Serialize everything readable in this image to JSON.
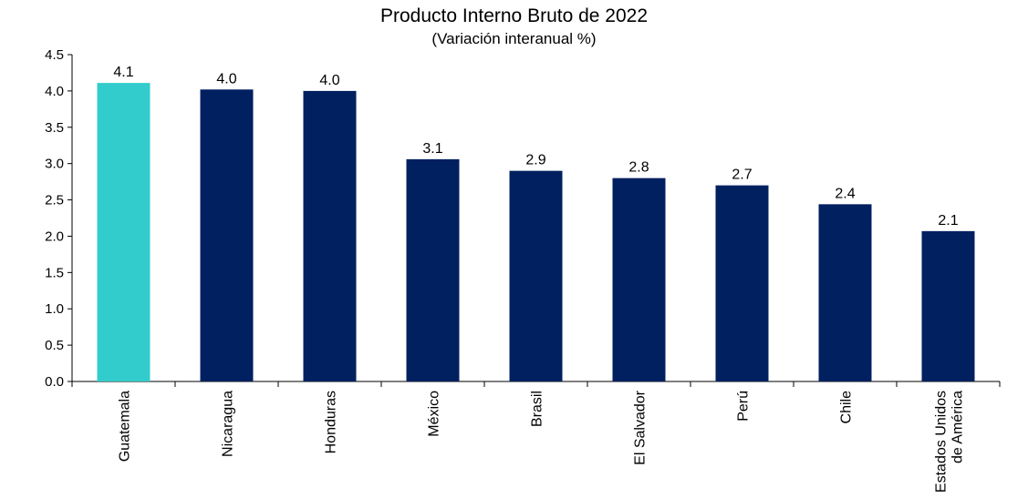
{
  "chart_data": {
    "type": "bar",
    "title": "Producto Interno Bruto de 2022",
    "subtitle": "(Variación interanual %)",
    "xlabel": "",
    "ylabel": "",
    "categories": [
      "Guatemala",
      "Nicaragua",
      "Honduras",
      "México",
      "Brasil",
      "El Salvador",
      "Perú",
      "Chile",
      "Estados Unidos de América"
    ],
    "values": [
      4.1,
      4.0,
      4.0,
      3.1,
      2.9,
      2.8,
      2.7,
      2.4,
      2.1
    ],
    "value_labels": [
      "4.1",
      "4.0",
      "4.0",
      "3.1",
      "2.9",
      "2.8",
      "2.7",
      "2.4",
      "2.1"
    ],
    "bar_heights": [
      4.11,
      4.02,
      4.0,
      3.06,
      2.9,
      2.8,
      2.7,
      2.44,
      2.07
    ],
    "ylim": [
      0,
      4.5
    ],
    "yticks": [
      "0.0",
      "0.5",
      "1.0",
      "1.5",
      "2.0",
      "2.5",
      "3.0",
      "3.5",
      "4.0",
      "4.5"
    ],
    "grid": false,
    "legend": "none",
    "colors": {
      "highlight": "#33CCCC",
      "default": "#002060"
    },
    "highlight_category": "Guatemala"
  }
}
